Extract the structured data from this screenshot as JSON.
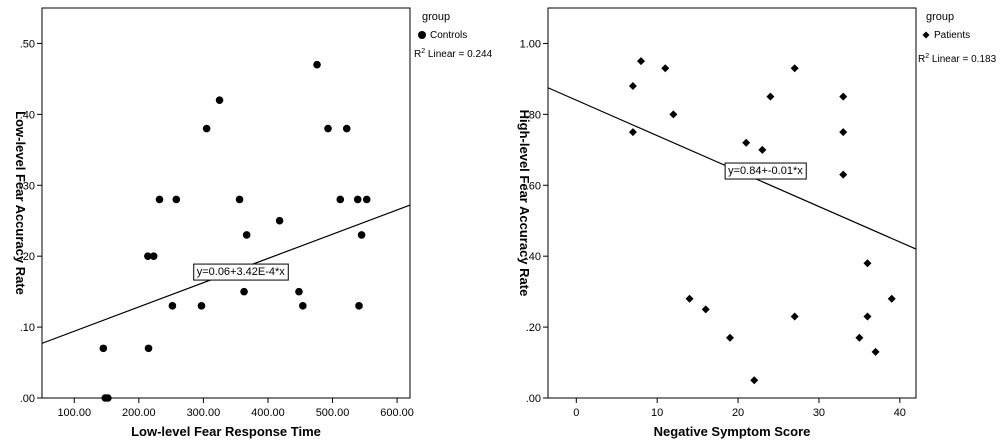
{
  "chart_data": [
    {
      "type": "scatter",
      "xlabel": "Low-level Fear Response Time",
      "ylabel": "Low-level Fear Accuracy Rate",
      "xlim": [
        50,
        620
      ],
      "ylim": [
        0,
        0.55
      ],
      "xticks": [
        "100.00",
        "200.00",
        "300.00",
        "400.00",
        "500.00",
        "600.00"
      ],
      "xtick_values": [
        100,
        200,
        300,
        400,
        500,
        600
      ],
      "yticks": [
        ".00",
        ".10",
        ".20",
        ".30",
        ".40",
        ".50"
      ],
      "ytick_values": [
        0,
        0.1,
        0.2,
        0.3,
        0.4,
        0.5
      ],
      "marker": "circle",
      "series": [
        {
          "name": "Controls",
          "points": [
            [
              145,
              0.07
            ],
            [
              148,
              0.0
            ],
            [
              152,
              0.0
            ],
            [
              214,
              0.2
            ],
            [
              215,
              0.07
            ],
            [
              223,
              0.2
            ],
            [
              232,
              0.28
            ],
            [
              252,
              0.13
            ],
            [
              258,
              0.28
            ],
            [
              297,
              0.13
            ],
            [
              305,
              0.38
            ],
            [
              325,
              0.42
            ],
            [
              356,
              0.28
            ],
            [
              363,
              0.15
            ],
            [
              367,
              0.23
            ],
            [
              418,
              0.25
            ],
            [
              448,
              0.15
            ],
            [
              454,
              0.13
            ],
            [
              476,
              0.47
            ],
            [
              493,
              0.38
            ],
            [
              512,
              0.28
            ],
            [
              522,
              0.38
            ],
            [
              539,
              0.28
            ],
            [
              541,
              0.13
            ],
            [
              545,
              0.23
            ],
            [
              553,
              0.28
            ]
          ]
        }
      ],
      "fit": {
        "intercept": 0.06,
        "slope": 0.000342,
        "label": "y=0.06+3.42E-4*x",
        "label_at": [
          285,
          0.179
        ]
      },
      "legend": {
        "title": "group",
        "entry": "Controls",
        "r2_prefix": "R",
        "r2_sup": "2",
        "r2_text": " Linear = 0.244"
      }
    },
    {
      "type": "scatter",
      "xlabel": "Negative Symptom Score",
      "ylabel": "High-level Fear Accuracy Rate",
      "xlim": [
        -3.5,
        42
      ],
      "ylim": [
        0,
        1.1
      ],
      "xticks": [
        "0",
        "10",
        "20",
        "30",
        "40"
      ],
      "xtick_values": [
        0,
        10,
        20,
        30,
        40
      ],
      "yticks": [
        ".00",
        ".20",
        ".40",
        ".60",
        ".80",
        "1.00"
      ],
      "ytick_values": [
        0,
        0.2,
        0.4,
        0.6,
        0.8,
        1.0
      ],
      "marker": "diamond",
      "series": [
        {
          "name": "Patients",
          "points": [
            [
              7,
              0.88
            ],
            [
              7,
              0.75
            ],
            [
              8,
              0.95
            ],
            [
              11,
              0.93
            ],
            [
              12,
              0.8
            ],
            [
              14,
              0.28
            ],
            [
              16,
              0.25
            ],
            [
              19,
              0.17
            ],
            [
              21,
              0.72
            ],
            [
              22,
              0.05
            ],
            [
              23,
              0.7
            ],
            [
              24,
              0.85
            ],
            [
              27,
              0.93
            ],
            [
              27,
              0.23
            ],
            [
              33,
              0.85
            ],
            [
              33,
              0.75
            ],
            [
              33,
              0.63
            ],
            [
              35,
              0.17
            ],
            [
              36,
              0.38
            ],
            [
              36,
              0.23
            ],
            [
              37,
              0.13
            ],
            [
              39,
              0.28
            ]
          ]
        }
      ],
      "fit": {
        "intercept": 0.84,
        "slope": -0.01,
        "label": "y=0.84+-0.01*x",
        "label_at": [
          18.4,
          0.643
        ]
      },
      "legend": {
        "title": "group",
        "entry": "Patients",
        "r2_prefix": "R",
        "r2_sup": "2",
        "r2_text": " Linear = 0.183"
      }
    }
  ]
}
